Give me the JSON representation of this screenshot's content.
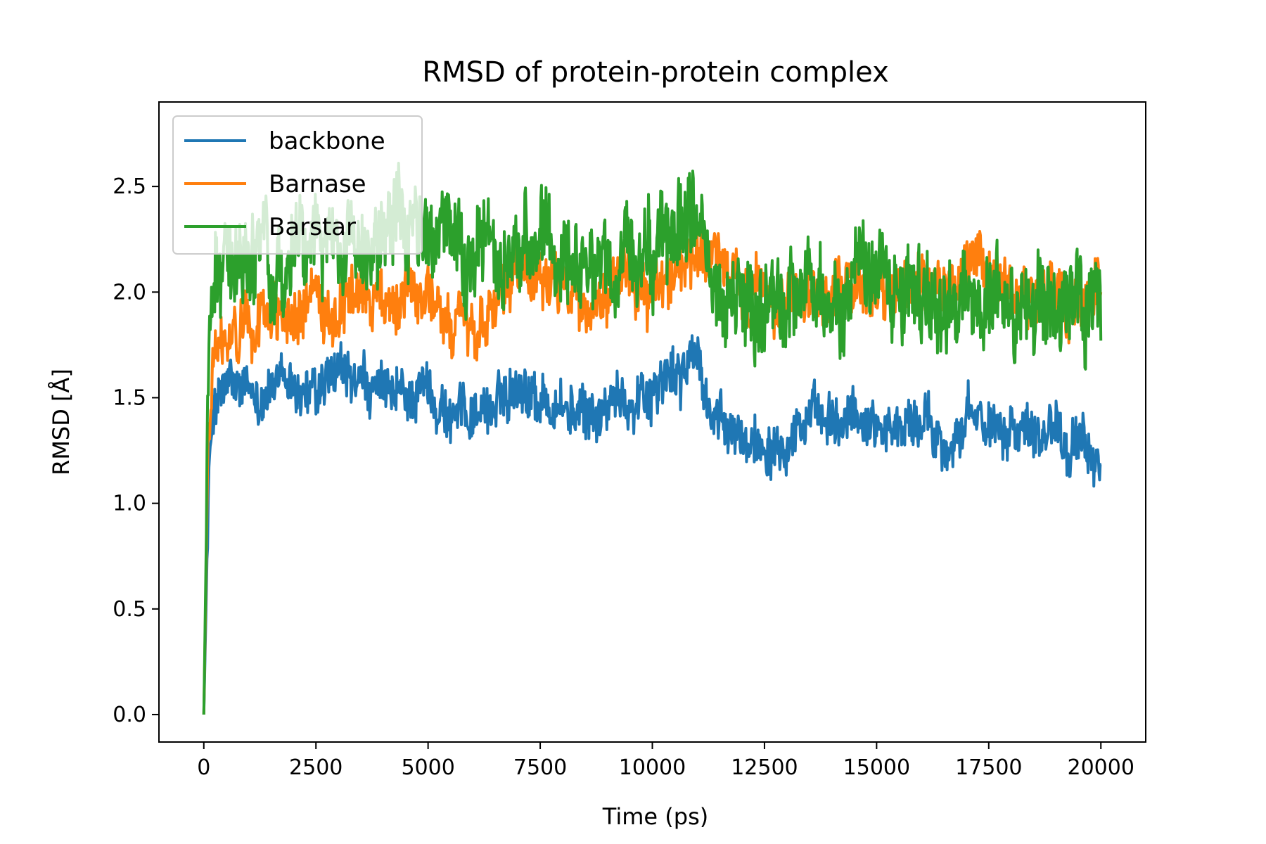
{
  "chart_data": {
    "type": "line",
    "title": "RMSD of protein-protein complex",
    "xlabel": "Time (ps)",
    "ylabel": "RMSD [Å]",
    "xlim": [
      -1000,
      21000
    ],
    "ylim": [
      -0.13,
      2.9
    ],
    "xticks": [
      0,
      2500,
      5000,
      7500,
      10000,
      12500,
      15000,
      17500,
      20000
    ],
    "xtick_labels": [
      "0",
      "2500",
      "5000",
      "7500",
      "10000",
      "12500",
      "15000",
      "17500",
      "20000"
    ],
    "yticks": [
      0.0,
      0.5,
      1.0,
      1.5,
      2.0,
      2.5
    ],
    "ytick_labels": [
      "0.0",
      "0.5",
      "1.0",
      "1.5",
      "2.0",
      "2.5"
    ],
    "grid": false,
    "legend": "top-left",
    "series": [
      {
        "name": "backbone",
        "color": "#1f77b4",
        "x": [
          0,
          100,
          200,
          500,
          1000,
          1500,
          2000,
          2500,
          3000,
          3500,
          4000,
          4500,
          5000,
          5500,
          6000,
          6500,
          7000,
          7500,
          8000,
          8500,
          9000,
          9500,
          10000,
          10500,
          11000,
          11200,
          11500,
          12000,
          12500,
          13000,
          13500,
          14000,
          14500,
          15000,
          15500,
          16000,
          16500,
          17000,
          17500,
          18000,
          18500,
          19000,
          19500,
          20000
        ],
        "y": [
          0.0,
          1.0,
          1.45,
          1.55,
          1.5,
          1.55,
          1.55,
          1.5,
          1.6,
          1.55,
          1.5,
          1.5,
          1.55,
          1.4,
          1.45,
          1.45,
          1.6,
          1.5,
          1.45,
          1.4,
          1.45,
          1.5,
          1.55,
          1.6,
          1.7,
          1.5,
          1.35,
          1.3,
          1.3,
          1.35,
          1.4,
          1.35,
          1.4,
          1.4,
          1.35,
          1.4,
          1.3,
          1.35,
          1.4,
          1.4,
          1.35,
          1.4,
          1.25,
          1.2
        ]
      },
      {
        "name": "Barnase",
        "color": "#ff7f0e",
        "x": [
          0,
          100,
          200,
          500,
          1000,
          1500,
          2000,
          2500,
          3000,
          3500,
          4000,
          4500,
          5000,
          5500,
          6000,
          6500,
          7000,
          7500,
          8000,
          8500,
          9000,
          9500,
          10000,
          10500,
          11000,
          11200,
          11500,
          12000,
          12500,
          13000,
          13500,
          14000,
          14500,
          15000,
          15500,
          16000,
          16500,
          17000,
          17500,
          18000,
          18500,
          19000,
          19500,
          20000
        ],
        "y": [
          0.0,
          1.3,
          1.7,
          1.75,
          1.85,
          1.9,
          1.95,
          1.85,
          1.95,
          2.0,
          1.95,
          2.0,
          1.95,
          1.85,
          1.85,
          1.95,
          2.05,
          2.0,
          2.0,
          1.95,
          1.95,
          2.05,
          2.05,
          2.1,
          2.2,
          2.1,
          2.1,
          2.0,
          1.95,
          2.0,
          2.0,
          1.95,
          2.05,
          2.0,
          2.0,
          2.05,
          2.0,
          2.05,
          2.1,
          2.05,
          1.95,
          2.0,
          1.95,
          2.0
        ]
      },
      {
        "name": "Barstar",
        "color": "#2ca02c",
        "x": [
          0,
          100,
          200,
          500,
          1000,
          1500,
          2000,
          2500,
          3000,
          3500,
          4000,
          4500,
          5000,
          5500,
          6000,
          6500,
          7000,
          7500,
          8000,
          8500,
          9000,
          9500,
          10000,
          10500,
          11000,
          11200,
          11500,
          12000,
          12500,
          13000,
          13500,
          14000,
          14500,
          15000,
          15500,
          16000,
          16500,
          17000,
          17500,
          18000,
          18500,
          19000,
          19500,
          20000
        ],
        "y": [
          0.0,
          1.5,
          2.05,
          2.15,
          2.2,
          2.15,
          2.2,
          2.25,
          2.2,
          2.25,
          2.3,
          2.35,
          2.3,
          2.2,
          2.1,
          2.2,
          2.15,
          2.2,
          2.15,
          2.1,
          2.05,
          2.1,
          2.15,
          2.3,
          2.45,
          2.1,
          2.0,
          1.95,
          1.85,
          1.95,
          2.0,
          1.95,
          2.05,
          2.0,
          2.0,
          2.05,
          1.95,
          2.0,
          2.05,
          1.95,
          1.95,
          2.0,
          1.85,
          1.9
        ]
      }
    ]
  }
}
